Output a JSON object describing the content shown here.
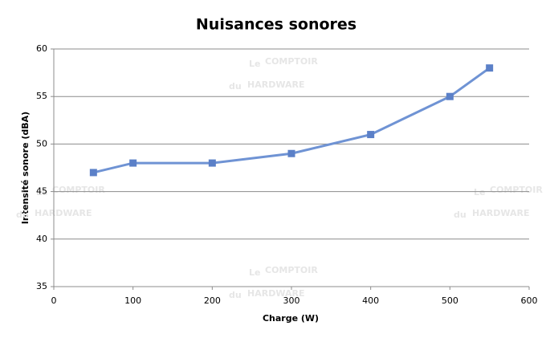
{
  "chart_data": {
    "type": "line",
    "title": "Nuisances sonores",
    "xlabel": "Charge (W)",
    "ylabel": "Intensité sonore (dBA)",
    "x": [
      50,
      100,
      200,
      300,
      400,
      500,
      550
    ],
    "series": [
      {
        "name": "Intensité sonore",
        "color": "#6f93d4",
        "marker_color": "#5b80c8",
        "values": [
          47,
          48,
          48,
          49,
          51,
          55,
          58
        ]
      }
    ],
    "xlim": [
      0,
      600
    ],
    "xticks": [
      0,
      100,
      200,
      300,
      400,
      500,
      600
    ],
    "ylim": [
      35,
      60
    ],
    "yticks": [
      35,
      40,
      45,
      50,
      55,
      60
    ],
    "grid": true,
    "legend": false,
    "watermark": {
      "le": "Le",
      "comptoir": "COMPTOIR",
      "du": "du",
      "hardware": "HARDWARE"
    }
  }
}
